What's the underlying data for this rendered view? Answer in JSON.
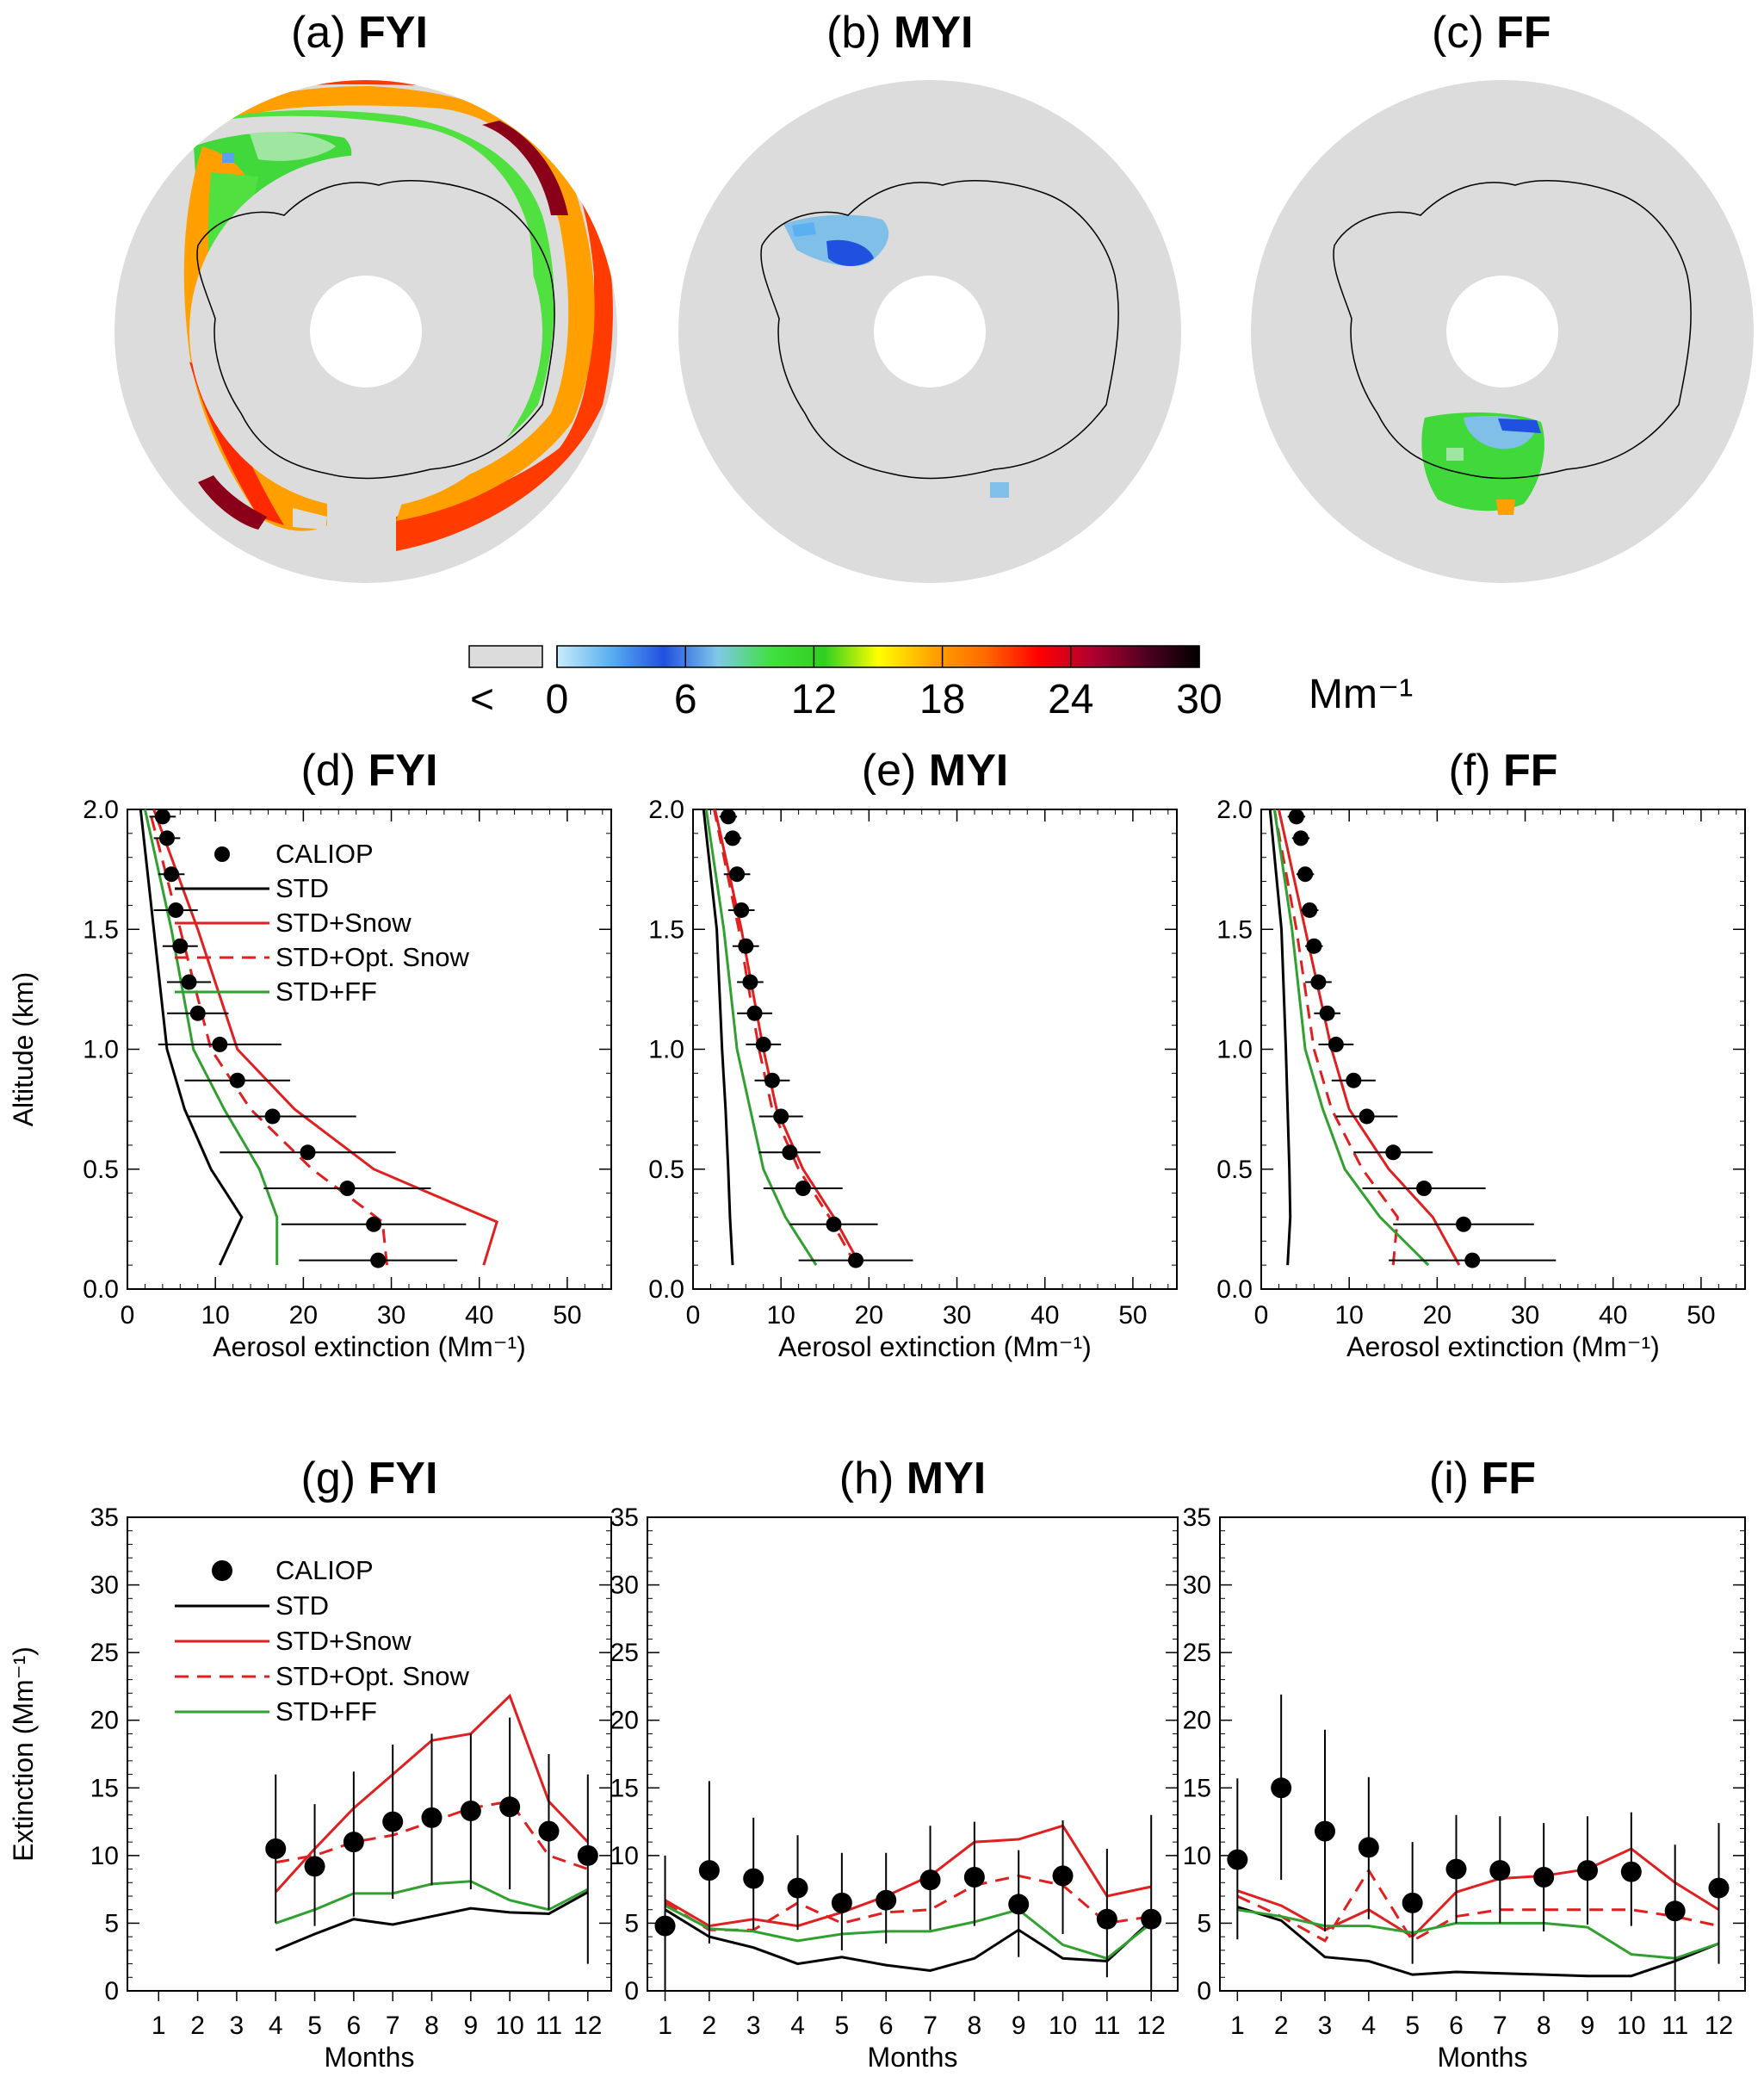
{
  "maps": [
    {
      "label": "(a)",
      "name": "FYI"
    },
    {
      "label": "(b)",
      "name": "MYI"
    },
    {
      "label": "(c)",
      "name": "FF"
    }
  ],
  "colorbar": {
    "below_symbol": "<",
    "ticks": [
      "0",
      "6",
      "12",
      "18",
      "24",
      "30"
    ],
    "unit": "Mm⁻¹",
    "colors": [
      "#c8ecfa",
      "#5ab0f0",
      "#2050e0",
      "#80c8e8",
      "#40e040",
      "#30d020",
      "#ffff00",
      "#ffa500",
      "#ff6a00",
      "#ff0000",
      "#b00030",
      "#500020",
      "#000000"
    ]
  },
  "colors": {
    "calipo": "#000000",
    "std": "#000000",
    "snow": "#e02020",
    "opt_snow": "#e02020",
    "ff": "#30a030",
    "map_background": "#dcdcdc"
  },
  "chart_data": [
    {
      "type": "line",
      "panel": "(d)",
      "title": "FYI",
      "xlabel": "Aerosol extinction (Mm⁻¹)",
      "ylabel": "Altitude (km)",
      "xlim": [
        0,
        55
      ],
      "ylim": [
        0,
        2
      ],
      "xticks": [
        "0",
        "10",
        "20",
        "30",
        "40",
        "50"
      ],
      "yticks": [
        "0.0",
        "0.5",
        "1.0",
        "1.5",
        "2.0"
      ],
      "legend": [
        "CALIOP",
        "STD",
        "STD+Snow",
        "STD+Opt. Snow",
        "STD+FF"
      ],
      "caliop": {
        "alt": [
          0.12,
          0.27,
          0.42,
          0.57,
          0.72,
          0.87,
          1.02,
          1.15,
          1.28,
          1.43,
          1.58,
          1.73,
          1.88,
          1.97
        ],
        "value": [
          28.5,
          28.0,
          25.0,
          20.5,
          16.5,
          12.5,
          10.5,
          8.0,
          7.0,
          6.0,
          5.5,
          5.0,
          4.5,
          4.0
        ],
        "err": [
          9.0,
          10.5,
          9.5,
          10.0,
          9.5,
          6.0,
          7.0,
          3.5,
          2.5,
          2.0,
          2.5,
          1.5,
          1.5,
          1.5
        ]
      },
      "series": [
        {
          "name": "STD",
          "x": [
            10.5,
            13.0,
            9.5,
            6.5,
            4.5,
            3.0,
            1.5
          ],
          "y": [
            0.1,
            0.3,
            0.5,
            0.75,
            1.0,
            1.5,
            2.0
          ]
        },
        {
          "name": "STD+Snow",
          "x": [
            40.5,
            42.0,
            28.0,
            19.0,
            12.5,
            8.0,
            3.0
          ],
          "y": [
            0.1,
            0.28,
            0.5,
            0.75,
            1.0,
            1.5,
            2.0
          ]
        },
        {
          "name": "STD+Opt. Snow",
          "x": [
            29.5,
            29.0,
            21.0,
            14.0,
            9.5,
            6.0,
            2.5
          ],
          "y": [
            0.1,
            0.28,
            0.5,
            0.75,
            1.0,
            1.5,
            2.0
          ]
        },
        {
          "name": "STD+FF",
          "x": [
            17.0,
            17.0,
            15.0,
            11.0,
            7.5,
            5.0,
            2.0
          ],
          "y": [
            0.1,
            0.3,
            0.5,
            0.75,
            1.0,
            1.5,
            2.0
          ]
        }
      ]
    },
    {
      "type": "line",
      "panel": "(e)",
      "title": "MYI",
      "xlabel": "Aerosol extinction (Mm⁻¹)",
      "ylabel": "",
      "xlim": [
        0,
        55
      ],
      "ylim": [
        0,
        2
      ],
      "xticks": [
        "0",
        "10",
        "20",
        "30",
        "40",
        "50"
      ],
      "yticks": [
        "0.0",
        "0.5",
        "1.0",
        "1.5",
        "2.0"
      ],
      "caliop": {
        "alt": [
          0.12,
          0.27,
          0.42,
          0.57,
          0.72,
          0.87,
          1.02,
          1.15,
          1.28,
          1.43,
          1.58,
          1.73,
          1.88,
          1.97
        ],
        "value": [
          18.5,
          16.0,
          12.5,
          11.0,
          10.0,
          9.0,
          8.0,
          7.0,
          6.5,
          6.0,
          5.5,
          5.0,
          4.5,
          4.0
        ],
        "err": [
          6.5,
          5.0,
          4.5,
          3.5,
          2.5,
          2.0,
          2.0,
          2.0,
          1.5,
          1.5,
          1.5,
          1.5,
          1.0,
          1.0
        ]
      },
      "series": [
        {
          "name": "STD",
          "x": [
            4.5,
            4.2,
            4.0,
            3.7,
            3.3,
            2.7,
            1.2
          ],
          "y": [
            0.1,
            0.3,
            0.5,
            0.75,
            1.0,
            1.5,
            2.0
          ]
        },
        {
          "name": "STD+Snow",
          "x": [
            19.0,
            16.0,
            12.5,
            9.5,
            8.0,
            5.5,
            2.5
          ],
          "y": [
            0.1,
            0.3,
            0.5,
            0.75,
            1.0,
            1.5,
            2.0
          ]
        },
        {
          "name": "STD+Opt. Snow",
          "x": [
            18.5,
            15.5,
            12.0,
            9.0,
            7.5,
            5.2,
            2.4
          ],
          "y": [
            0.1,
            0.3,
            0.5,
            0.75,
            1.0,
            1.5,
            2.0
          ]
        },
        {
          "name": "STD+FF",
          "x": [
            14.0,
            10.5,
            8.0,
            6.5,
            5.0,
            3.5,
            1.5
          ],
          "y": [
            0.1,
            0.3,
            0.5,
            0.75,
            1.0,
            1.5,
            2.0
          ]
        }
      ]
    },
    {
      "type": "line",
      "panel": "(f)",
      "title": "FF",
      "xlabel": "Aerosol extinction (Mm⁻¹)",
      "ylabel": "",
      "xlim": [
        0,
        55
      ],
      "ylim": [
        0,
        2
      ],
      "xticks": [
        "0",
        "10",
        "20",
        "30",
        "40",
        "50"
      ],
      "yticks": [
        "0.0",
        "0.5",
        "1.0",
        "1.5",
        "2.0"
      ],
      "caliop": {
        "alt": [
          0.12,
          0.27,
          0.42,
          0.57,
          0.72,
          0.87,
          1.02,
          1.15,
          1.28,
          1.43,
          1.58,
          1.73,
          1.88,
          1.97
        ],
        "value": [
          24.0,
          23.0,
          18.5,
          15.0,
          12.0,
          10.5,
          8.5,
          7.5,
          6.5,
          6.0,
          5.5,
          5.0,
          4.5,
          4.0
        ],
        "err": [
          9.5,
          8.0,
          7.0,
          4.5,
          3.5,
          2.5,
          2.0,
          1.5,
          1.5,
          1.0,
          1.0,
          1.0,
          1.0,
          1.0
        ]
      },
      "series": [
        {
          "name": "STD",
          "x": [
            3.0,
            3.3,
            3.2,
            3.0,
            2.8,
            2.3,
            1.0
          ],
          "y": [
            0.1,
            0.3,
            0.5,
            0.75,
            1.0,
            1.5,
            2.0
          ]
        },
        {
          "name": "STD+Snow",
          "x": [
            22.5,
            19.5,
            14.5,
            10.0,
            8.0,
            5.0,
            2.0
          ],
          "y": [
            0.1,
            0.3,
            0.5,
            0.75,
            1.0,
            1.5,
            2.0
          ]
        },
        {
          "name": "STD+Opt. Snow",
          "x": [
            15.0,
            15.5,
            11.5,
            8.0,
            6.0,
            4.0,
            1.5
          ],
          "y": [
            0.1,
            0.3,
            0.5,
            0.75,
            1.0,
            1.5,
            2.0
          ]
        },
        {
          "name": "STD+FF",
          "x": [
            19.0,
            13.5,
            9.5,
            7.0,
            5.0,
            3.5,
            1.5
          ],
          "y": [
            0.1,
            0.3,
            0.5,
            0.75,
            1.0,
            1.5,
            2.0
          ]
        }
      ]
    },
    {
      "type": "line",
      "panel": "(g)",
      "title": "FYI",
      "xlabel": "Months",
      "ylabel": "Extinction (Mm⁻¹)",
      "xlim": [
        0.2,
        12.6
      ],
      "ylim": [
        0,
        35
      ],
      "xticks": [
        "1",
        "2",
        "3",
        "4",
        "5",
        "6",
        "7",
        "8",
        "9",
        "10",
        "11",
        "12"
      ],
      "yticks": [
        "0",
        "5",
        "10",
        "15",
        "20",
        "25",
        "30",
        "35"
      ],
      "legend": [
        "CALIOP",
        "STD",
        "STD+Snow",
        "STD+Opt. Snow",
        "STD+FF"
      ],
      "caliop": {
        "month": [
          4,
          5,
          6,
          7,
          8,
          9,
          10,
          11,
          12
        ],
        "value": [
          10.5,
          9.2,
          11.0,
          12.5,
          12.8,
          13.3,
          13.6,
          11.8,
          10.0
        ],
        "lo": [
          5.0,
          4.8,
          5.5,
          6.8,
          7.8,
          7.5,
          7.5,
          6.0,
          2.0
        ],
        "hi": [
          16.0,
          13.8,
          16.2,
          18.2,
          19.0,
          19.0,
          20.2,
          17.5,
          16.0
        ]
      },
      "series": [
        {
          "name": "STD",
          "x": [
            4,
            5,
            6,
            7,
            8,
            9,
            10,
            11,
            12
          ],
          "y": [
            3.0,
            4.2,
            5.3,
            4.9,
            5.5,
            6.1,
            5.8,
            5.7,
            7.3
          ]
        },
        {
          "name": "STD+Snow",
          "x": [
            4,
            5,
            6,
            7,
            8,
            9,
            10,
            11,
            12
          ],
          "y": [
            7.3,
            10.5,
            13.5,
            16.0,
            18.5,
            19.0,
            21.8,
            14.0,
            11.0
          ]
        },
        {
          "name": "STD+Opt. Snow",
          "x": [
            4,
            5,
            6,
            7,
            8,
            9,
            10,
            11,
            12
          ],
          "y": [
            9.5,
            10.0,
            11.0,
            11.5,
            12.5,
            13.5,
            14.0,
            10.0,
            9.0
          ]
        },
        {
          "name": "STD+FF",
          "x": [
            4,
            5,
            6,
            7,
            8,
            9,
            10,
            11,
            12
          ],
          "y": [
            5.0,
            6.0,
            7.2,
            7.2,
            7.9,
            8.1,
            6.7,
            6.0,
            7.5
          ]
        }
      ]
    },
    {
      "type": "line",
      "panel": "(h)",
      "title": "MYI",
      "xlabel": "Months",
      "ylabel": "",
      "xlim": [
        0.6,
        12.6
      ],
      "ylim": [
        0,
        35
      ],
      "xticks": [
        "1",
        "2",
        "3",
        "4",
        "5",
        "6",
        "7",
        "8",
        "9",
        "10",
        "11",
        "12"
      ],
      "yticks": [
        "0",
        "5",
        "10",
        "15",
        "20",
        "25",
        "30",
        "35"
      ],
      "caliop": {
        "month": [
          1,
          2,
          3,
          4,
          5,
          6,
          7,
          8,
          9,
          10,
          11,
          12
        ],
        "value": [
          4.8,
          8.9,
          8.3,
          7.6,
          6.5,
          6.7,
          8.2,
          8.4,
          6.4,
          8.5,
          5.3,
          5.3
        ],
        "lo": [
          0.0,
          3.5,
          4.5,
          4.5,
          3.0,
          3.5,
          4.5,
          4.8,
          2.5,
          4.2,
          1.0,
          0.0
        ],
        "hi": [
          10.0,
          15.5,
          12.8,
          11.5,
          10.2,
          10.2,
          12.2,
          12.5,
          10.4,
          12.6,
          10.5,
          13.0
        ]
      },
      "series": [
        {
          "name": "STD",
          "x": [
            1,
            2,
            3,
            4,
            5,
            6,
            7,
            8,
            9,
            10,
            11,
            12
          ],
          "y": [
            6.0,
            4.0,
            3.2,
            2.0,
            2.5,
            1.9,
            1.5,
            2.4,
            4.5,
            2.4,
            2.2,
            5.2
          ]
        },
        {
          "name": "STD+Snow",
          "x": [
            1,
            2,
            3,
            4,
            5,
            6,
            7,
            8,
            9,
            10,
            11,
            12
          ],
          "y": [
            6.7,
            4.8,
            5.3,
            4.8,
            5.8,
            7.0,
            8.5,
            11.0,
            11.2,
            12.2,
            7.0,
            7.7
          ]
        },
        {
          "name": "STD+Opt. Snow",
          "x": [
            1,
            2,
            3,
            4,
            5,
            6,
            7,
            8,
            9,
            10,
            11,
            12
          ],
          "y": [
            6.5,
            4.5,
            4.5,
            6.5,
            5.0,
            5.8,
            6.0,
            7.8,
            8.5,
            7.8,
            5.0,
            5.5
          ]
        },
        {
          "name": "STD+FF",
          "x": [
            1,
            2,
            3,
            4,
            5,
            6,
            7,
            8,
            9,
            10,
            11,
            12
          ],
          "y": [
            6.3,
            4.6,
            4.4,
            3.7,
            4.2,
            4.4,
            4.4,
            5.1,
            6.0,
            3.4,
            2.4,
            5.0
          ]
        }
      ]
    },
    {
      "type": "line",
      "panel": "(i)",
      "title": "FF",
      "xlabel": "Months",
      "ylabel": "",
      "xlim": [
        0.6,
        12.6
      ],
      "ylim": [
        0,
        35
      ],
      "xticks": [
        "1",
        "2",
        "3",
        "4",
        "5",
        "6",
        "7",
        "8",
        "9",
        "10",
        "11",
        "12"
      ],
      "yticks": [
        "0",
        "5",
        "10",
        "15",
        "20",
        "25",
        "30",
        "35"
      ],
      "caliop": {
        "month": [
          1,
          2,
          3,
          4,
          5,
          6,
          7,
          8,
          9,
          10,
          11,
          12
        ],
        "value": [
          9.7,
          15.0,
          11.8,
          10.6,
          6.5,
          9.0,
          8.9,
          8.4,
          8.9,
          8.8,
          5.9,
          7.6
        ],
        "lo": [
          3.8,
          8.2,
          4.4,
          5.3,
          2.0,
          5.0,
          5.0,
          4.4,
          4.9,
          4.8,
          0.0,
          2.0
        ],
        "hi": [
          15.7,
          21.9,
          19.3,
          15.8,
          11.0,
          13.0,
          12.9,
          12.4,
          12.9,
          13.2,
          10.8,
          12.4
        ]
      },
      "series": [
        {
          "name": "STD",
          "x": [
            1,
            2,
            3,
            4,
            5,
            6,
            7,
            8,
            9,
            10,
            11,
            12
          ],
          "y": [
            6.2,
            5.2,
            2.5,
            2.2,
            1.2,
            1.4,
            1.3,
            1.2,
            1.1,
            1.1,
            2.2,
            3.5
          ]
        },
        {
          "name": "STD+Snow",
          "x": [
            1,
            2,
            3,
            4,
            5,
            6,
            7,
            8,
            9,
            10,
            11,
            12
          ],
          "y": [
            7.4,
            6.3,
            4.5,
            6.0,
            4.0,
            7.3,
            8.3,
            8.5,
            9.0,
            10.5,
            8.0,
            6.0
          ]
        },
        {
          "name": "STD+Opt. Snow",
          "x": [
            1,
            2,
            3,
            4,
            5,
            6,
            7,
            8,
            9,
            10,
            11,
            12
          ],
          "y": [
            7.0,
            5.5,
            3.7,
            8.9,
            3.7,
            5.5,
            6.0,
            6.0,
            6.0,
            6.0,
            5.5,
            4.8
          ]
        },
        {
          "name": "STD+FF",
          "x": [
            1,
            2,
            3,
            4,
            5,
            6,
            7,
            8,
            9,
            10,
            11,
            12
          ],
          "y": [
            6.0,
            5.5,
            4.8,
            4.8,
            4.3,
            5.0,
            5.0,
            5.0,
            4.7,
            2.7,
            2.4,
            3.5
          ]
        }
      ]
    }
  ]
}
